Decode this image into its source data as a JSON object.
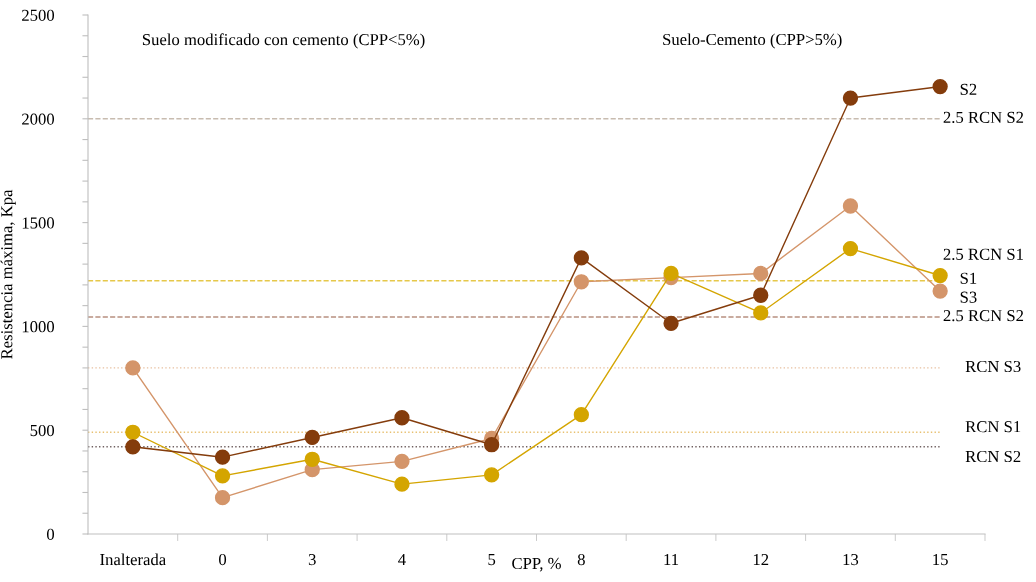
{
  "chart_data": {
    "type": "line",
    "ylabel": "Resistencia máxima, Kpa",
    "xlabel": "CPP, %",
    "categories": [
      "Inalterada",
      "0",
      "3",
      "4",
      "5",
      "8",
      "11",
      "12",
      "13",
      "15"
    ],
    "series": [
      {
        "name": "S2",
        "color": "#843c0c",
        "values": [
          420,
          370,
          465,
          560,
          430,
          1330,
          1015,
          1150,
          2100,
          2155
        ]
      },
      {
        "name": "S1",
        "color": "#d4a500",
        "values": [
          490,
          280,
          360,
          240,
          285,
          575,
          1255,
          1065,
          1375,
          1245
        ]
      },
      {
        "name": "S3",
        "color": "#d4956a",
        "values": [
          800,
          175,
          310,
          350,
          460,
          1215,
          1235,
          1255,
          1580,
          1170
        ]
      }
    ],
    "ylim": [
      0,
      2500
    ],
    "yticks": [
      0,
      {
        "value": 100,
        "label": null
      },
      {
        "value": 200,
        "label": null
      },
      {
        "value": 300,
        "label": null
      },
      {
        "value": 400,
        "label": null
      },
      500,
      {
        "value": 600,
        "label": null
      },
      {
        "value": 700,
        "label": null
      },
      {
        "value": 800,
        "label": null
      },
      {
        "value": 900,
        "label": null
      },
      1000,
      {
        "value": 1100,
        "label": null
      },
      {
        "value": 1200,
        "label": null
      },
      {
        "value": 1300,
        "label": null
      },
      {
        "value": 1400,
        "label": null
      },
      1500,
      {
        "value": 1600,
        "label": null
      },
      {
        "value": 1700,
        "label": null
      },
      {
        "value": 1800,
        "label": null
      },
      {
        "value": 1900,
        "label": null
      },
      2000,
      {
        "value": 2100,
        "label": null
      },
      {
        "value": 2200,
        "label": null
      },
      {
        "value": 2300,
        "label": null
      },
      {
        "value": 2400,
        "label": null
      },
      2500
    ],
    "ref_lines": [
      {
        "axis": "y",
        "value": 2000,
        "label": "2.5 RCN S2",
        "color": "#c8bcb0",
        "line_style": "dashed"
      },
      {
        "axis": "y",
        "value": 1220,
        "label": "2.5 RCN S1",
        "color": "#e6c84a",
        "line_style": "dashed"
      },
      {
        "axis": "y",
        "value": 1045,
        "label": "2.5 RCN S2",
        "color": "#b89080",
        "line_style": "dashed"
      },
      {
        "axis": "y",
        "value": 800,
        "label": "RCN S3",
        "color": "#e8c0a0",
        "line_style": "dotted"
      },
      {
        "axis": "y",
        "value": 490,
        "label": "RCN S1",
        "color": "#e8c070",
        "line_style": "dotted"
      },
      {
        "axis": "y",
        "value": 420,
        "label": "RCN S2",
        "color": "#706060",
        "line_style": "dotted"
      }
    ],
    "annotations": [
      "Suelo modificado con cemento (CPP<5%)",
      "Suelo-Cemento (CPP>5%)"
    ],
    "marker": "circle",
    "line_style": "solid",
    "grid": false,
    "legend": false
  }
}
